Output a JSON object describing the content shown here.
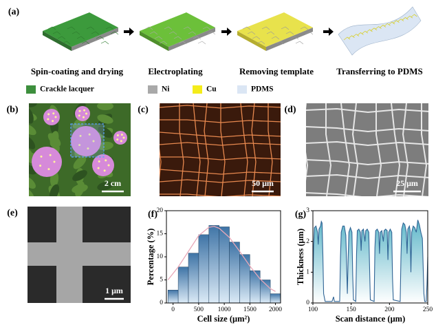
{
  "panel_labels": [
    "(a)",
    "(b)",
    "(c)",
    "(d)",
    "(e)",
    "(f)",
    "(g)"
  ],
  "steps": [
    "Spin-coating and drying",
    "Electroplating",
    "Removing template",
    "Transferring to PDMS"
  ],
  "legend": [
    {
      "label": "Crackle lacquer",
      "color": "#3d8f3d"
    },
    {
      "label": "Ni",
      "color": "#a9a9a9"
    },
    {
      "label": "Cu",
      "color": "#f4ec1a"
    },
    {
      "label": "PDMS",
      "color": "#dbe6f4"
    }
  ],
  "scale_bars": [
    "2 cm",
    "50 μm",
    "25 μm",
    "1 μm"
  ],
  "chart_data": [
    {
      "type": "histogram",
      "x_label": "Cell size (μm²)",
      "y_label": "Percentage (%)",
      "bins": [
        -100,
        100,
        300,
        500,
        700,
        900,
        1100,
        1300,
        1500,
        1700,
        1900,
        2100
      ],
      "values": [
        2.8,
        7.8,
        10.8,
        14.8,
        16.8,
        16.5,
        13.2,
        10.5,
        7.0,
        5.0,
        2.0
      ],
      "color": "#3f74a6",
      "fit": {
        "x": [
          -100,
          100,
          300,
          500,
          700,
          800,
          900,
          1100,
          1300,
          1500,
          1700,
          1900,
          2000
        ],
        "values": [
          5,
          7.8,
          11.2,
          14.6,
          16.4,
          16.6,
          16.2,
          14.2,
          11.2,
          8,
          5.2,
          3.1,
          2.5
        ],
        "color": "#e8a8b8"
      },
      "xlim": [
        -130,
        2100
      ],
      "xticks": [
        0,
        500,
        1000,
        1500,
        2000
      ],
      "ylim": [
        0,
        20
      ],
      "yticks": [
        0,
        5,
        10,
        15,
        20
      ]
    },
    {
      "type": "area",
      "x_label": "Scan distance  (μm)",
      "y_label": "Thickness (μm)",
      "x": [
        100,
        101,
        102,
        104,
        106,
        107,
        108,
        110,
        111,
        112,
        113,
        114,
        116,
        125,
        127,
        128,
        135,
        136,
        137,
        139,
        141,
        143,
        144,
        145,
        146,
        147,
        149,
        151,
        152,
        153,
        156,
        157,
        158,
        160,
        162,
        163,
        164,
        166,
        168,
        169,
        171,
        173,
        174,
        175,
        180,
        181,
        182,
        184,
        186,
        187,
        188,
        190,
        192,
        193,
        195,
        197,
        198,
        199,
        201,
        203,
        204,
        205,
        214,
        215,
        216,
        218,
        220,
        222,
        223,
        224,
        226,
        227,
        228,
        229,
        231,
        233,
        235,
        237,
        239,
        241,
        243,
        244,
        245,
        246,
        248,
        249,
        250
      ],
      "values": [
        0.5,
        1.9,
        2.45,
        2.5,
        2.3,
        1.9,
        2.4,
        2.5,
        2.65,
        2.6,
        1.6,
        0.3,
        0.05,
        0.05,
        0.2,
        0.05,
        0.05,
        1.5,
        2.3,
        2.5,
        2.5,
        2.2,
        1.3,
        0.3,
        1.4,
        2.3,
        2.45,
        2.3,
        0.9,
        0.1,
        0.05,
        1.6,
        2.35,
        2.4,
        2.3,
        1.7,
        2.35,
        2.4,
        2.0,
        2.35,
        2.4,
        2.3,
        1.2,
        0.1,
        0.05,
        1.8,
        2.35,
        2.4,
        2.3,
        1.6,
        2.3,
        2.35,
        2.0,
        2.35,
        2.4,
        2.35,
        1.4,
        2.3,
        2.4,
        2.3,
        0.8,
        0.1,
        0.05,
        1.5,
        2.4,
        2.6,
        2.55,
        2.3,
        1.6,
        2.4,
        2.5,
        2.35,
        1.0,
        2.3,
        2.5,
        2.45,
        2.3,
        2.7,
        2.55,
        2.3,
        2.1,
        1.2,
        0.3,
        0.05,
        0.05,
        0.6,
        1.5
      ],
      "color": "#2f6394",
      "xlim": [
        100,
        250
      ],
      "xticks": [
        100,
        150,
        200,
        250
      ],
      "ylim": [
        0,
        3
      ],
      "yticks": [
        0,
        1,
        2,
        3
      ]
    }
  ]
}
